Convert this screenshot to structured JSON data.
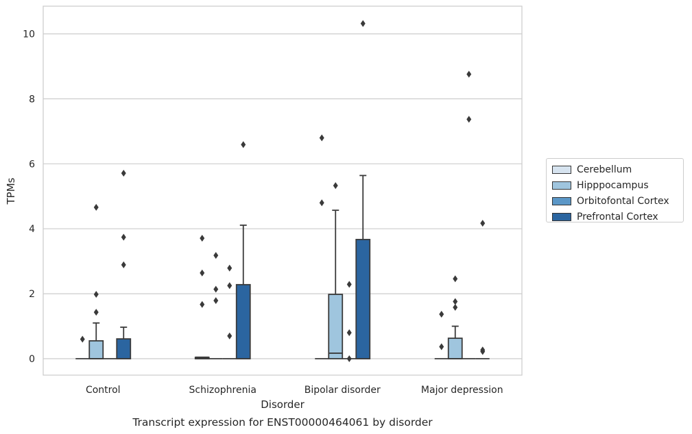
{
  "chart_data": {
    "type": "box",
    "title": "Transcript expression for ENST00000464061 by disorder",
    "xlabel": "Disorder",
    "ylabel": "TPMs",
    "ylim": [
      -0.5,
      10.8
    ],
    "yticks": [
      0,
      2,
      4,
      6,
      8,
      10
    ],
    "grid": "horizontal",
    "legend_position": "right",
    "categories": [
      "Control",
      "Schizophrenia",
      "Bipolar disorder",
      "Major depression"
    ],
    "series": [
      {
        "name": "Cerebellum",
        "color": "#d6e3ef",
        "boxes": [
          {
            "q1": 0,
            "median": 0,
            "q3": 0,
            "whisker_low": 0,
            "whisker_high": 0,
            "outliers": [
              0.6
            ]
          },
          {
            "q1": 0,
            "median": 0,
            "q3": 0.04,
            "whisker_low": 0,
            "whisker_high": 0.04,
            "outliers": [
              1.67,
              2.64,
              3.71
            ]
          },
          {
            "q1": 0,
            "median": 0,
            "q3": 0,
            "whisker_low": 0,
            "whisker_high": 0,
            "outliers": [
              4.8,
              6.8
            ]
          },
          {
            "q1": 0,
            "median": 0,
            "q3": 0,
            "whisker_low": 0,
            "whisker_high": 0,
            "outliers": [
              0.37,
              1.37
            ]
          }
        ]
      },
      {
        "name": "Hipppocampus",
        "color": "#9fc5de",
        "boxes": [
          {
            "q1": 0,
            "median": 0,
            "q3": 0.55,
            "whisker_low": 0,
            "whisker_high": 1.1,
            "outliers": [
              1.43,
              1.98,
              4.66
            ]
          },
          {
            "q1": 0,
            "median": 0,
            "q3": 0,
            "whisker_low": 0,
            "whisker_high": 0,
            "outliers": [
              1.79,
              2.14,
              3.18
            ]
          },
          {
            "q1": 0,
            "median": 0.17,
            "q3": 1.98,
            "whisker_low": 0,
            "whisker_high": 4.57,
            "outliers": [
              5.33
            ]
          },
          {
            "q1": 0,
            "median": 0,
            "q3": 0.63,
            "whisker_low": 0,
            "whisker_high": 1.0,
            "outliers": [
              1.58,
              1.76,
              2.46
            ]
          }
        ]
      },
      {
        "name": "Orbitofontal Cortex",
        "color": "#5b97c7",
        "boxes": [
          {
            "q1": 0,
            "median": 0,
            "q3": 0,
            "whisker_low": 0,
            "whisker_high": 0,
            "outliers": []
          },
          {
            "q1": 0,
            "median": 0,
            "q3": 0,
            "whisker_low": 0,
            "whisker_high": 0,
            "outliers": [
              0.7,
              2.25,
              2.79
            ]
          },
          {
            "q1": 0,
            "median": 0,
            "q3": 0,
            "whisker_low": 0,
            "whisker_high": 0,
            "outliers": [
              0.0,
              0.8,
              2.29
            ]
          },
          {
            "q1": 0,
            "median": 0,
            "q3": 0,
            "whisker_low": 0,
            "whisker_high": 0,
            "outliers": [
              7.37,
              8.76
            ]
          }
        ]
      },
      {
        "name": "Prefrontal Cortex",
        "color": "#2b65a0",
        "boxes": [
          {
            "q1": 0,
            "median": 0,
            "q3": 0.61,
            "whisker_low": 0,
            "whisker_high": 0.97,
            "outliers": [
              2.89,
              3.74,
              5.71
            ]
          },
          {
            "q1": 0,
            "median": 0,
            "q3": 2.28,
            "whisker_low": 0,
            "whisker_high": 4.11,
            "outliers": [
              6.59
            ]
          },
          {
            "q1": 0,
            "median": 0,
            "q3": 3.67,
            "whisker_low": 0,
            "whisker_high": 5.64,
            "outliers": [
              10.32
            ]
          },
          {
            "q1": 0,
            "median": 0,
            "q3": 0,
            "whisker_low": 0,
            "whisker_high": 0,
            "outliers": [
              0.22,
              0.27,
              4.17
            ]
          }
        ]
      }
    ]
  }
}
